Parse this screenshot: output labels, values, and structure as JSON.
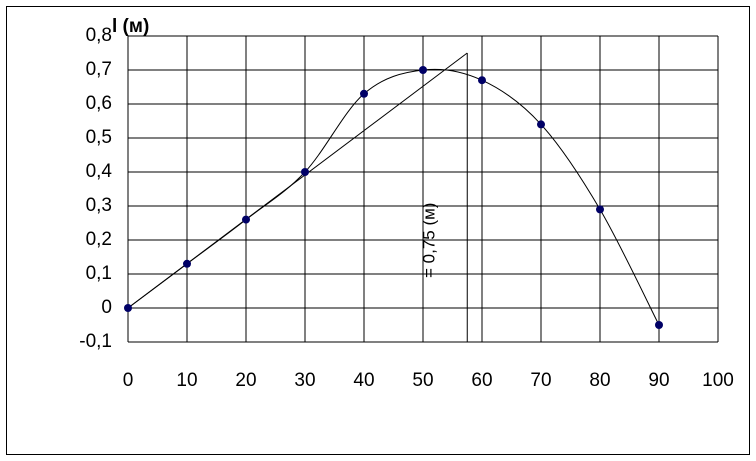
{
  "chart_data": {
    "type": "line",
    "y_label": "l (м)",
    "annotation": "= 0,75 (м)",
    "x": [
      0,
      10,
      20,
      30,
      40,
      50,
      60,
      70,
      80,
      90
    ],
    "series": [
      {
        "color": "#000066",
        "values": [
          0,
          0.13,
          0.26,
          0.4,
          0.63,
          0.7,
          0.67,
          0.54,
          0.29,
          -0.05
        ]
      }
    ],
    "lines": [
      {
        "x": [
          0,
          57.5
        ],
        "values": [
          0,
          0.75
        ]
      },
      {
        "x": [
          57.5,
          57.5
        ],
        "values": [
          0.75,
          -0.1
        ]
      }
    ],
    "xlim": [
      0,
      100
    ],
    "xticks": [
      0,
      10,
      20,
      30,
      40,
      50,
      60,
      70,
      80,
      90,
      100
    ],
    "ylim": [
      -0.1,
      0.8
    ],
    "yticks": [
      {
        "value": -0.1,
        "label": "-0,1"
      },
      0,
      {
        "value": 0.1,
        "label": "0,1"
      },
      {
        "value": 0.2,
        "label": "0,2"
      },
      {
        "value": 0.3,
        "label": "0,3"
      },
      {
        "value": 0.4,
        "label": "0,4"
      },
      {
        "value": 0.5,
        "label": "0,5"
      },
      {
        "value": 0.6,
        "label": "0,6"
      },
      {
        "value": 0.7,
        "label": "0,7"
      },
      {
        "value": 0.8,
        "label": "0,8"
      }
    ],
    "grid": true
  }
}
